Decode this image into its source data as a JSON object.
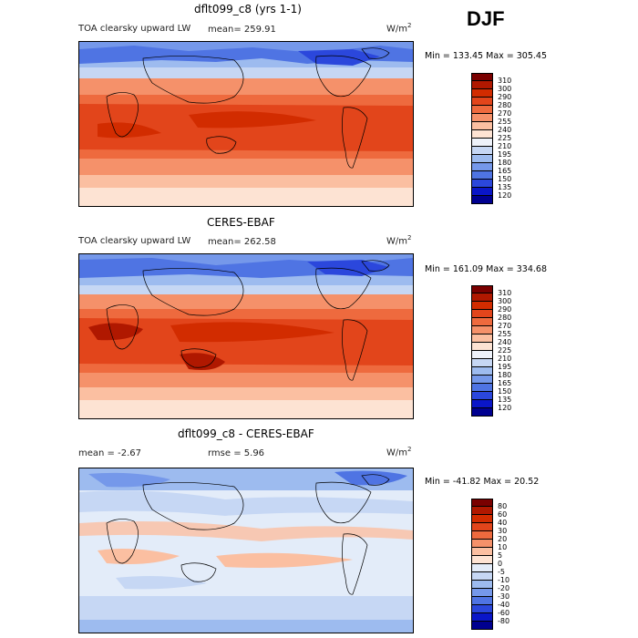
{
  "season": "DJF",
  "panels": [
    {
      "title": "dflt099_c8 (yrs 1-1)",
      "field_label": "TOA clearsky upward LW",
      "stat1": "mean= 259.91",
      "stat2": "",
      "units": "W/m",
      "units_exp": "2",
      "minmax": "Min = 133.45 Max = 305.45",
      "levels": [
        "310",
        "300",
        "290",
        "280",
        "270",
        "255",
        "240",
        "225",
        "210",
        "195",
        "180",
        "165",
        "150",
        "135",
        "120"
      ],
      "colors": [
        "#7a0000",
        "#b01800",
        "#d22c00",
        "#e2451b",
        "#ee6a3e",
        "#f5916a",
        "#fbbfa1",
        "#fde3d3",
        "#eef2fa",
        "#c6d7f4",
        "#9dbbef",
        "#7598ea",
        "#4f74e3",
        "#2b47dc",
        "#0a16c8",
        "#000090"
      ]
    },
    {
      "title": "CERES-EBAF",
      "field_label": "TOA clearsky upward LW",
      "stat1": "mean= 262.58",
      "stat2": "",
      "units": "W/m",
      "units_exp": "2",
      "minmax": "Min = 161.09 Max = 334.68",
      "levels": [
        "310",
        "300",
        "290",
        "280",
        "270",
        "255",
        "240",
        "225",
        "210",
        "195",
        "180",
        "165",
        "150",
        "135",
        "120"
      ],
      "colors": [
        "#7a0000",
        "#b01800",
        "#d22c00",
        "#e2451b",
        "#ee6a3e",
        "#f5916a",
        "#fbbfa1",
        "#fde3d3",
        "#eef2fa",
        "#c6d7f4",
        "#9dbbef",
        "#7598ea",
        "#4f74e3",
        "#2b47dc",
        "#0a16c8",
        "#000090"
      ]
    },
    {
      "title": "dflt099_c8 - CERES-EBAF",
      "field_label": "",
      "stat1": "mean =   -2.67",
      "stat2": "rmse =    5.96",
      "units": "W/m",
      "units_exp": "2",
      "minmax": "Min = -41.82 Max =  20.52",
      "levels": [
        "80",
        "60",
        "40",
        "30",
        "20",
        "10",
        "5",
        "0",
        "-5",
        "-10",
        "-20",
        "-30",
        "-40",
        "-60",
        "-80"
      ],
      "colors": [
        "#7a0000",
        "#b01800",
        "#d22c00",
        "#e2451b",
        "#ee6a3e",
        "#f5916a",
        "#fbbfa1",
        "#fde3d3",
        "#e3ecf9",
        "#c6d7f4",
        "#9dbbef",
        "#7598ea",
        "#4f74e3",
        "#2b47dc",
        "#0a16c8",
        "#000090"
      ]
    }
  ]
}
